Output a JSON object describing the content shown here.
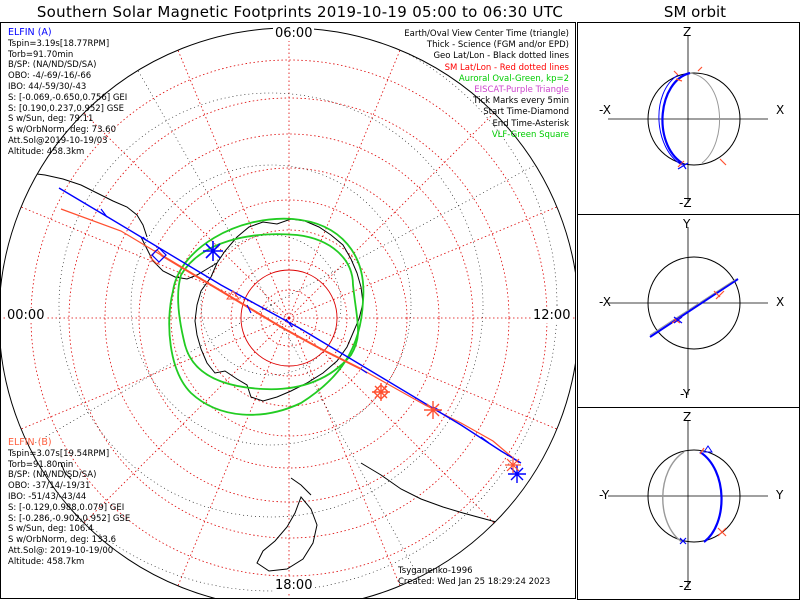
{
  "title": "Southern Solar Magnetic Footprints 2019-10-19 05:00 to 06:30 UTC",
  "orbit_title": "SM orbit",
  "clock_labels": {
    "top": "06:00",
    "left": "00:00",
    "right": "12:00",
    "bottom": "18:00"
  },
  "elfin_a": {
    "header": "ELFIN (A)",
    "color": "#0000ff",
    "lines": [
      "Tspin=3.19s[18.77RPM]",
      "Torb=91.70min",
      "B/SP: (NA/ND/SD/SA)",
      "OBO: -4/-69/-16/-66",
      "IBO: 44/-59/30/-43",
      "S: [-0.069,-0.650,0.756] GEI",
      "S: [0.190,0.237,0.952] GSE",
      "S w/Sun, deg: 79.11",
      "S w/OrbNorm, deg: 73.60",
      "Att.Sol@2019-10-19/03",
      "Altitude: 458.3km"
    ]
  },
  "elfin_b": {
    "header": "ELFIN (B)",
    "color": "#ff6040",
    "lines": [
      "Tspin=3.07s[19.54RPM]",
      "Torb=91.80min",
      "B/SP: (NA/ND/SD/SA)",
      "OBO: -37/14/-19/31",
      "IBO: -51/43/-43/44",
      "S: [-0.129,0.988,0.079] GEI",
      "S: [-0.286,-0.902,0.952] GSE",
      "S w/Sun, deg: 106.4",
      "S w/OrbNorm, deg: 133.6",
      "Att.Sol@: 2019-10-19/00",
      "Altitude: 458.7km"
    ]
  },
  "legend": [
    {
      "text": "Earth/Oval View Center Time (triangle)",
      "color": "#000000"
    },
    {
      "text": "Thick - Science (FGM and/or EPD)",
      "color": "#000000"
    },
    {
      "text": "Geo Lat/Lon - Black dotted lines",
      "color": "#000000"
    },
    {
      "text": "SM Lat/Lon - Red dotted lines",
      "color": "#ff0000"
    },
    {
      "text": "Auroral Oval-Green, kp=2",
      "color": "#00cc00"
    },
    {
      "text": "EISCAT-Purple Triangle",
      "color": "#cc44cc"
    },
    {
      "text": "Tick Marks every 5min",
      "color": "#000000"
    },
    {
      "text": "Start Time-Diamond",
      "color": "#000000"
    },
    {
      "text": "End Time-Asterisk",
      "color": "#000000"
    },
    {
      "text": "VLF-Green Square",
      "color": "#00cc00"
    }
  ],
  "credits": [
    "Tsyganenko-1996",
    "Created: Wed Jan 25 18:29:24 2023"
  ],
  "orbit_panels": [
    {
      "top": "Z",
      "bottom": "-Z",
      "left": "-X",
      "right": "X"
    },
    {
      "top": "Y",
      "bottom": "-Y",
      "left": "-X",
      "right": "X"
    },
    {
      "top": "Z",
      "bottom": "-Z",
      "left": "-Y",
      "right": "Y"
    }
  ],
  "colors": {
    "elfin_a": "#0000ff",
    "elfin_b": "#ff5030",
    "oval": "#22cc22",
    "sm_grid": "#dd0000",
    "geo_grid": "#000000"
  }
}
